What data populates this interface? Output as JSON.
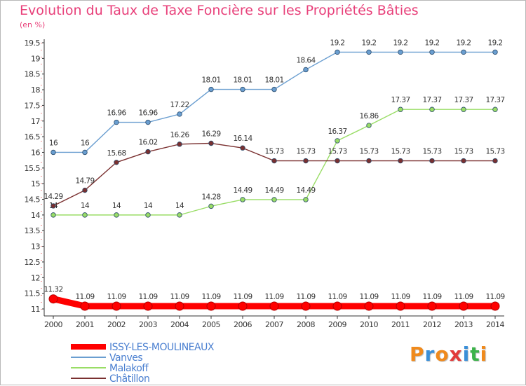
{
  "chart_data": {
    "type": "line",
    "title": "Evolution du Taux de Taxe Foncière sur les Propriétés Bâties",
    "unit_label": "(en %)",
    "xlabel": "",
    "ylabel": "",
    "categories": [
      "2000",
      "2001",
      "2002",
      "2003",
      "2004",
      "2005",
      "2006",
      "2007",
      "2008",
      "2009",
      "2010",
      "2011",
      "2012",
      "2013",
      "2014"
    ],
    "y_ticks": [
      "11",
      "11.5",
      "12",
      "12.5",
      "13",
      "13.5",
      "14",
      "14.5",
      "15",
      "15.5",
      "16",
      "16.5",
      "17",
      "17.5",
      "18",
      "18.5",
      "19",
      "19.5"
    ],
    "ylim": [
      11,
      19.5
    ],
    "series": [
      {
        "name": "ISSY-LES-MOULINEAUX",
        "color": "#ff0000",
        "values": [
          11.32,
          11.09,
          11.09,
          11.09,
          11.09,
          11.09,
          11.09,
          11.09,
          11.09,
          11.09,
          11.09,
          11.09,
          11.09,
          11.09,
          11.09
        ],
        "labels": [
          "11.32",
          "11.09",
          "11.09",
          "11.09",
          "11.09",
          "11.09",
          "11.09",
          "11.09",
          "11.09",
          "11.09",
          "11.09",
          "11.09",
          "11.09",
          "11.09",
          "11.09"
        ]
      },
      {
        "name": "Vanves",
        "color": "#6a9ed0",
        "values": [
          16,
          16,
          16.96,
          16.96,
          17.22,
          18.01,
          18.01,
          18.01,
          18.64,
          19.2,
          19.2,
          19.2,
          19.2,
          19.2,
          19.2
        ],
        "labels": [
          "16",
          "16",
          "16.96",
          "16.96",
          "17.22",
          "18.01",
          "18.01",
          "18.01",
          "18.64",
          "19.2",
          "19.2",
          "19.2",
          "19.2",
          "19.2",
          "19.2"
        ]
      },
      {
        "name": "Malakoff",
        "color": "#99dd66",
        "values": [
          14,
          14,
          14,
          14,
          14,
          14.28,
          14.49,
          14.49,
          14.49,
          16.37,
          16.86,
          17.37,
          17.37,
          17.37,
          17.37
        ],
        "labels": [
          "14",
          "14",
          "14",
          "14",
          "14",
          "14.28",
          "14.49",
          "14.49",
          "14.49",
          "16.37",
          "16.86",
          "17.37",
          "17.37",
          "17.37",
          "17.37"
        ]
      },
      {
        "name": "Châtillon",
        "color": "#7a3030",
        "values": [
          14.29,
          14.79,
          15.68,
          16.02,
          16.26,
          16.29,
          16.14,
          15.73,
          15.73,
          15.73,
          15.73,
          15.73,
          15.73,
          15.73,
          15.73
        ],
        "labels": [
          "14.29",
          "14.79",
          "15.68",
          "16.02",
          "16.26",
          "16.29",
          "16.14",
          "15.73",
          "15.73",
          "15.73",
          "15.73",
          "15.73",
          "15.73",
          "15.73",
          "15.73"
        ]
      }
    ],
    "legend_position": "bottom-left"
  },
  "logo": {
    "text": "Proxiti",
    "letters": [
      "P",
      "r",
      "o",
      "x",
      "i",
      "t",
      "i"
    ],
    "letter_colors": [
      "#f08a1c",
      "#3a8fd8",
      "#f08a1c",
      "#e23a3a",
      "#3a8fd8",
      "#3cb34a",
      "#f08a1c"
    ]
  }
}
